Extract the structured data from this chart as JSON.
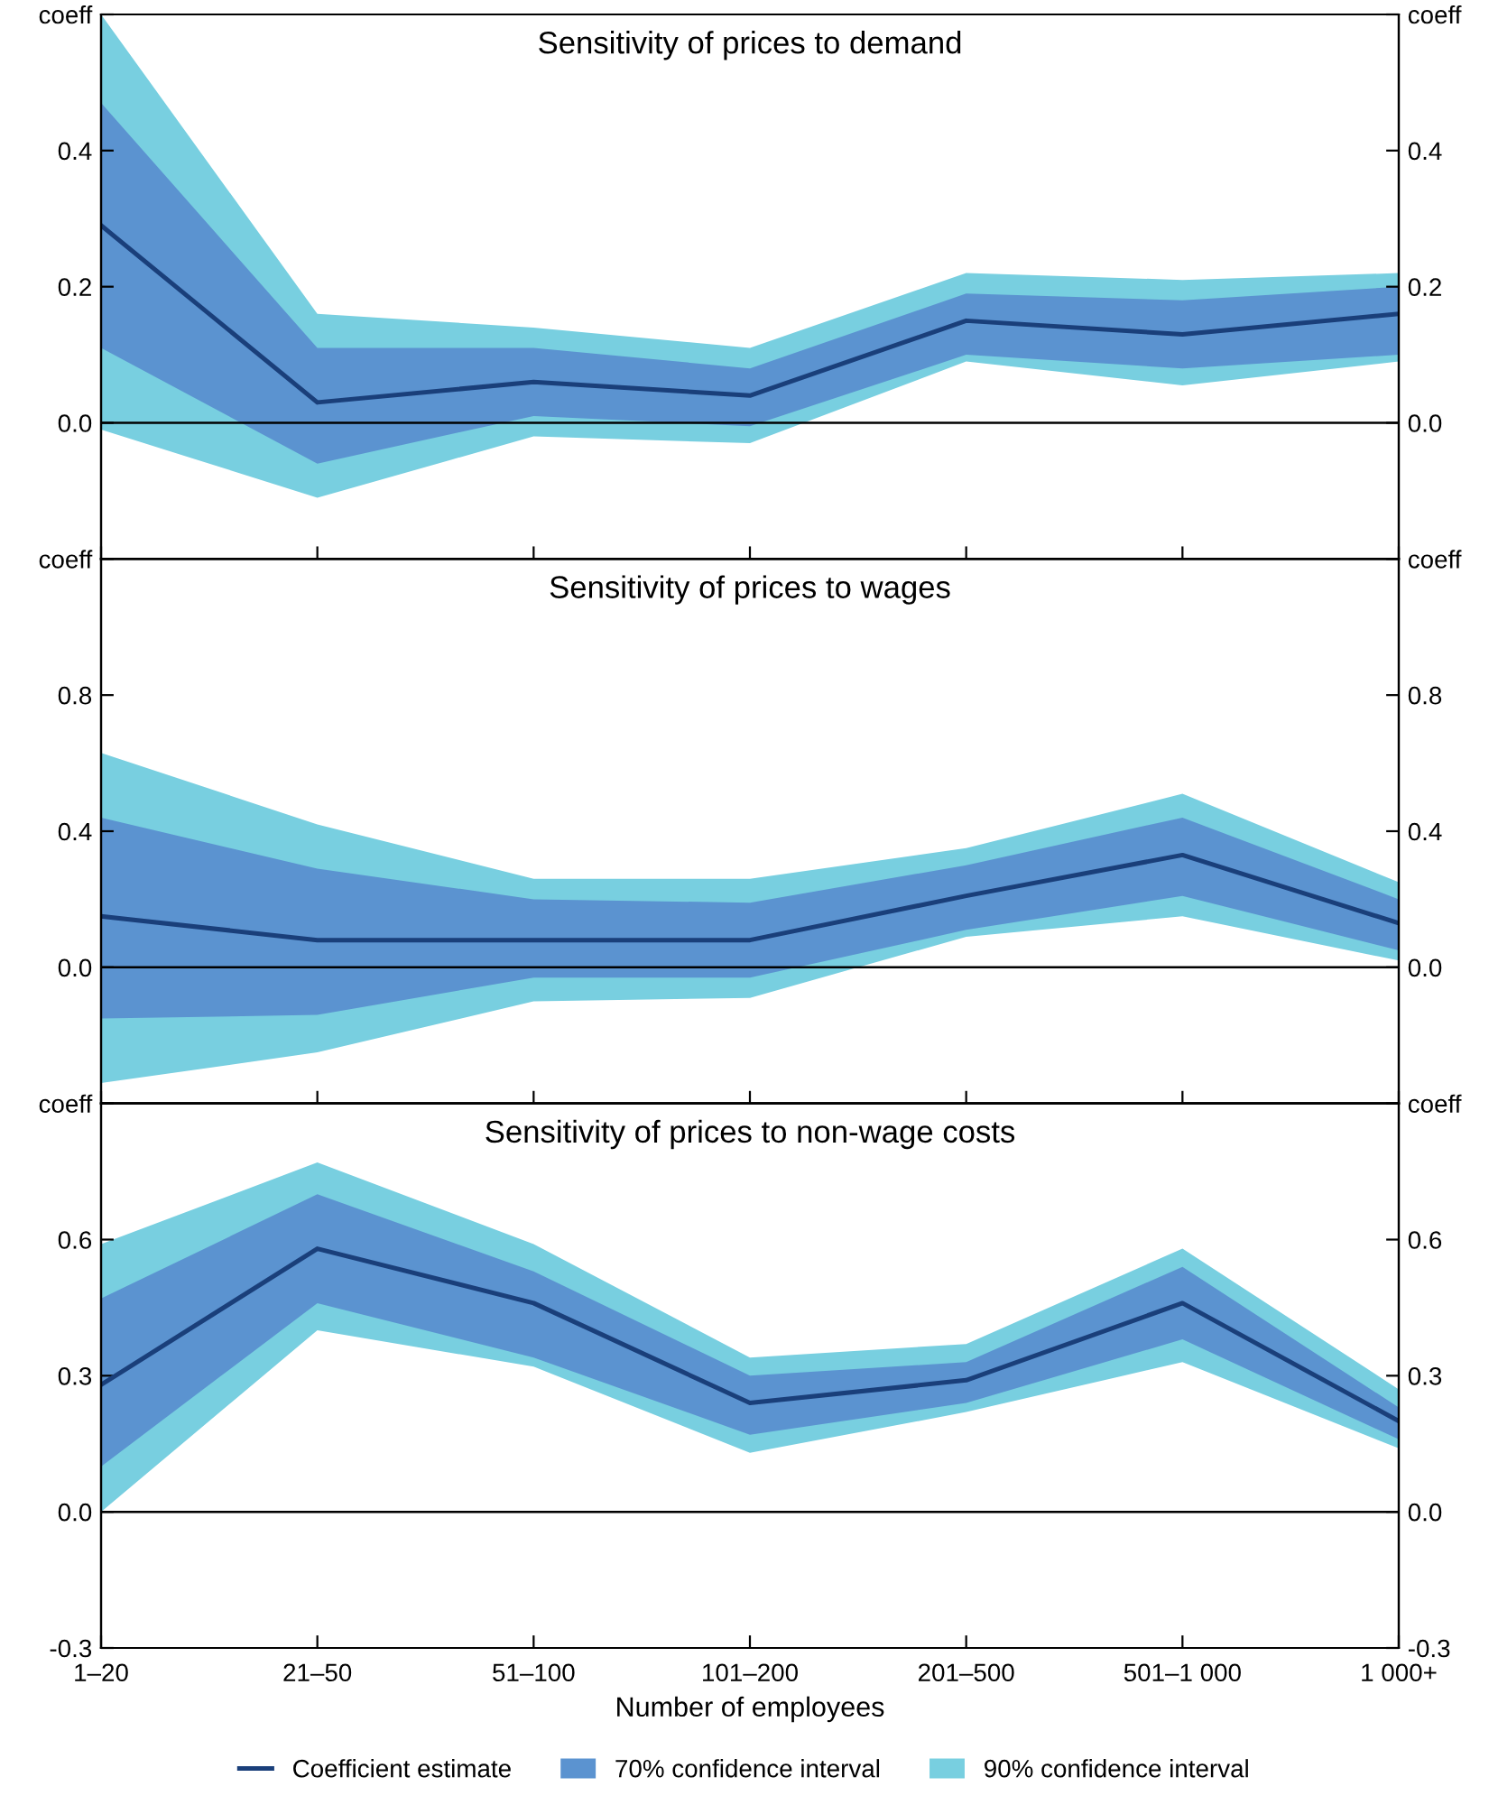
{
  "chart_data": [
    {
      "type": "line",
      "title": "Sensitivity of prices to demand",
      "categories": [
        null,
        null,
        null,
        null,
        null,
        null,
        null
      ],
      "series": [
        {
          "type": "area",
          "color": "#78cfe0",
          "values": [
            null,
            null,
            null,
            null,
            null,
            null,
            null
          ],
          "lower": [
            -0.01,
            -0.11,
            -0.02,
            -0.03,
            0.09,
            0.055,
            0.09
          ],
          "upper": [
            0.6,
            0.16,
            0.14,
            0.11,
            0.22,
            0.21,
            0.22
          ]
        },
        {
          "type": "area",
          "color": "#5b93d0",
          "values": [
            null,
            null,
            null,
            null,
            null,
            null,
            null
          ],
          "lower": [
            0.11,
            -0.06,
            0.01,
            -0.005,
            0.1,
            0.08,
            0.1
          ],
          "upper": [
            0.47,
            0.11,
            0.11,
            0.08,
            0.19,
            0.18,
            0.2
          ]
        },
        {
          "color": "#1a3f7a",
          "values": [
            0.29,
            0.03,
            0.06,
            0.04,
            0.15,
            0.13,
            0.16
          ]
        }
      ],
      "ylim": [
        -0.2,
        0.6
      ],
      "yticks": [
        {
          "value": -0.2,
          "label": null
        },
        {
          "value": 0,
          "label": "0.0"
        },
        0.2,
        0.4,
        {
          "value": 0.6,
          "label": "coeff"
        }
      ],
      "y2lim": [
        -0.2,
        0.6
      ],
      "y2ticks": [
        {
          "value": -0.2,
          "label": null
        },
        {
          "value": 0,
          "label": "0.0"
        },
        0.2,
        0.4,
        {
          "value": 0.6,
          "label": "coeff"
        }
      ],
      "ref_lines": [
        {
          "axis": "y",
          "value": 0,
          "color": "#000000"
        }
      ],
      "tick_labels": "y",
      "grid": false,
      "legend": false
    },
    {
      "type": "line",
      "title": "Sensitivity of prices to wages",
      "categories": [
        null,
        null,
        null,
        null,
        null,
        null,
        null
      ],
      "series": [
        {
          "type": "area",
          "color": "#78cfe0",
          "values": [
            null,
            null,
            null,
            null,
            null,
            null,
            null
          ],
          "lower": [
            -0.34,
            -0.25,
            -0.1,
            -0.09,
            0.09,
            0.15,
            0.02
          ],
          "upper": [
            0.63,
            0.42,
            0.26,
            0.26,
            0.35,
            0.51,
            0.25
          ]
        },
        {
          "type": "area",
          "color": "#5b93d0",
          "values": [
            null,
            null,
            null,
            null,
            null,
            null,
            null
          ],
          "lower": [
            -0.15,
            -0.14,
            -0.03,
            -0.03,
            0.11,
            0.21,
            0.05
          ],
          "upper": [
            0.44,
            0.29,
            0.2,
            0.19,
            0.3,
            0.44,
            0.2
          ]
        },
        {
          "color": "#1a3f7a",
          "values": [
            0.15,
            0.08,
            0.08,
            0.08,
            0.21,
            0.33,
            0.13
          ]
        }
      ],
      "ylim": [
        -0.4,
        1.2
      ],
      "yticks": [
        {
          "value": -0.4,
          "label": null
        },
        {
          "value": 0,
          "label": "0.0"
        },
        0.4,
        0.8,
        {
          "value": 1.2,
          "label": "coeff"
        }
      ],
      "y2lim": [
        -0.4,
        1.2
      ],
      "y2ticks": [
        {
          "value": -0.4,
          "label": null
        },
        {
          "value": 0,
          "label": "0.0"
        },
        0.4,
        0.8,
        {
          "value": 1.2,
          "label": "coeff"
        }
      ],
      "ref_lines": [
        {
          "axis": "y",
          "value": 0,
          "color": "#000000"
        }
      ],
      "tick_labels": "y",
      "grid": false,
      "legend": false
    },
    {
      "type": "line",
      "title": "Sensitivity of prices to non-wage costs",
      "xlabel": "Number of employees",
      "categories": [
        "1–20",
        "21–50",
        "51–100",
        "101–200",
        "201–500",
        "501–1 000",
        "1 000+"
      ],
      "series": [
        {
          "name": "90% confidence interval",
          "type": "area",
          "color": "#78cfe0",
          "values": [
            null,
            null,
            null,
            null,
            null,
            null,
            null
          ],
          "lower": [
            0.0,
            0.4,
            0.32,
            0.13,
            0.22,
            0.33,
            0.14
          ],
          "upper": [
            0.59,
            0.77,
            0.59,
            0.34,
            0.37,
            0.58,
            0.27
          ]
        },
        {
          "name": "70% confidence interval",
          "type": "area",
          "color": "#5b93d0",
          "values": [
            null,
            null,
            null,
            null,
            null,
            null,
            null
          ],
          "lower": [
            0.1,
            0.46,
            0.34,
            0.17,
            0.24,
            0.38,
            0.16
          ],
          "upper": [
            0.47,
            0.7,
            0.53,
            0.3,
            0.33,
            0.54,
            0.23
          ]
        },
        {
          "name": "Coefficient estimate",
          "color": "#1a3f7a",
          "values": [
            0.28,
            0.58,
            0.46,
            0.24,
            0.29,
            0.46,
            0.2
          ]
        }
      ],
      "ylim": [
        -0.3,
        0.9
      ],
      "yticks": [
        -0.3,
        {
          "value": 0,
          "label": "0.0"
        },
        0.3,
        0.6,
        {
          "value": 0.9,
          "label": "coeff"
        }
      ],
      "y2lim": [
        -0.3,
        0.9
      ],
      "y2ticks": [
        -0.3,
        {
          "value": 0,
          "label": "0.0"
        },
        0.3,
        0.6,
        {
          "value": 0.9,
          "label": "coeff"
        }
      ],
      "ref_lines": [
        {
          "axis": "y",
          "value": 0,
          "color": "#000000"
        }
      ],
      "grid": false,
      "legend": "bottom"
    }
  ]
}
